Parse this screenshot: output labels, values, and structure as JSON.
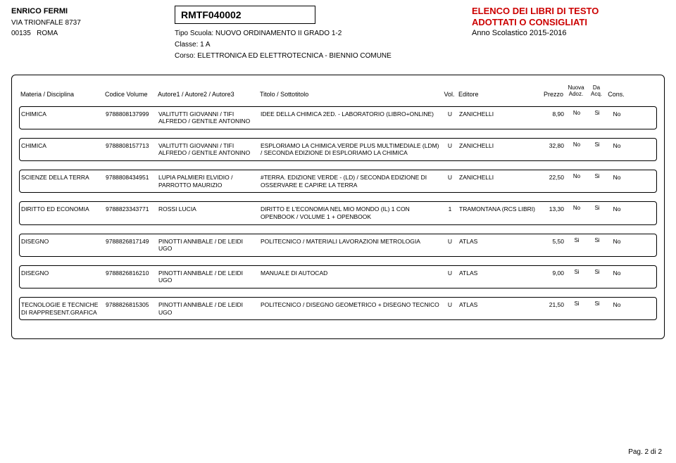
{
  "school": {
    "name": "ENRICO FERMI",
    "address": "VIA TRIONFALE 8737",
    "postcode": "00135",
    "city": "ROMA"
  },
  "code": "RMTF040002",
  "course": {
    "tipo_label": "Tipo Scuola:",
    "tipo": "NUOVO ORDINAMENTO II GRADO 1-2",
    "classe_label": "Classe:",
    "classe": "1 A",
    "corso_label": "Corso:",
    "corso": "ELETTRONICA ED ELETTROTECNICA - BIENNIO COMUNE"
  },
  "header_right": {
    "line1": "ELENCO DEI LIBRI DI TESTO",
    "line2": "ADOTTATI O CONSIGLIATI",
    "anno": "Anno Scolastico 2015-2016"
  },
  "columns": {
    "materia": "Materia / Disciplina",
    "codice": "Codice Volume",
    "autore": "Autore1 / Autore2 / Autore3",
    "titolo": "Titolo / Sottotitolo",
    "vol": "Vol.",
    "editore": "Editore",
    "prezzo": "Prezzo",
    "nuova1": "Nuova",
    "nuova2": "Adoz.",
    "da1": "Da",
    "da2": "Acq.",
    "cons": "Cons."
  },
  "rows": [
    {
      "materia": "CHIMICA",
      "codice": "9788808137999",
      "autore": "VALITUTTI GIOVANNI / TIFI ALFREDO / GENTILE ANTONINO",
      "titolo": "IDEE DELLA CHIMICA 2ED. - LABORATORIO (LIBRO+ONLINE)",
      "vol": "U",
      "editore": "ZANICHELLI",
      "prezzo": "8,90",
      "nuova": "No",
      "da": "Si",
      "cons": "No"
    },
    {
      "materia": "CHIMICA",
      "codice": "9788808157713",
      "autore": "VALITUTTI GIOVANNI / TIFI ALFREDO / GENTILE ANTONINO",
      "titolo": "ESPLORIAMO LA CHIMICA.VERDE PLUS MULTIMEDIALE (LDM) / SECONDA EDIZIONE DI ESPLORIAMO LA CHIMICA",
      "vol": "U",
      "editore": "ZANICHELLI",
      "prezzo": "32,80",
      "nuova": "No",
      "da": "Si",
      "cons": "No"
    },
    {
      "materia": "SCIENZE DELLA TERRA",
      "codice": "9788808434951",
      "autore": "LUPIA PALMIERI ELVIDIO / PARROTTO MAURIZIO",
      "titolo": "#TERRA. EDIZIONE VERDE - (LD) / SECONDA EDIZIONE DI OSSERVARE E CAPIRE LA TERRA",
      "vol": "U",
      "editore": "ZANICHELLI",
      "prezzo": "22,50",
      "nuova": "No",
      "da": "Si",
      "cons": "No"
    },
    {
      "materia": "DIRITTO ED ECONOMIA",
      "codice": "9788823343771",
      "autore": "ROSSI LUCIA",
      "titolo": "DIRITTO E L'ECONOMIA NEL MIO MONDO (IL) 1 CON OPENBOOK / VOLUME 1 + OPENBOOK",
      "vol": "1",
      "editore": "TRAMONTANA (RCS LIBRI)",
      "prezzo": "13,30",
      "nuova": "No",
      "da": "Si",
      "cons": "No"
    },
    {
      "materia": "DISEGNO",
      "codice": "9788826817149",
      "autore": "PINOTTI ANNIBALE / DE LEIDI UGO",
      "titolo": "POLITECNICO / MATERIALI LAVORAZIONI METROLOGIA",
      "vol": "U",
      "editore": "ATLAS",
      "prezzo": "5,50",
      "nuova": "Si",
      "da": "Si",
      "cons": "No"
    },
    {
      "materia": "DISEGNO",
      "codice": "9788826816210",
      "autore": "PINOTTI ANNIBALE / DE LEIDI UGO",
      "titolo": "MANUALE DI AUTOCAD",
      "vol": "U",
      "editore": "ATLAS",
      "prezzo": "9,00",
      "nuova": "Si",
      "da": "Si",
      "cons": "No"
    },
    {
      "materia": "TECNOLOGIE E TECNICHE DI RAPPRESENT.GRAFICA",
      "codice": "9788826815305",
      "autore": "PINOTTI ANNIBALE / DE LEIDI UGO",
      "titolo": "POLITECNICO / DISEGNO GEOMETRICO + DISEGNO TECNICO",
      "vol": "U",
      "editore": "ATLAS",
      "prezzo": "21,50",
      "nuova": "Si",
      "da": "Si",
      "cons": "No"
    }
  ],
  "footer": "Pag. 2 di 2"
}
